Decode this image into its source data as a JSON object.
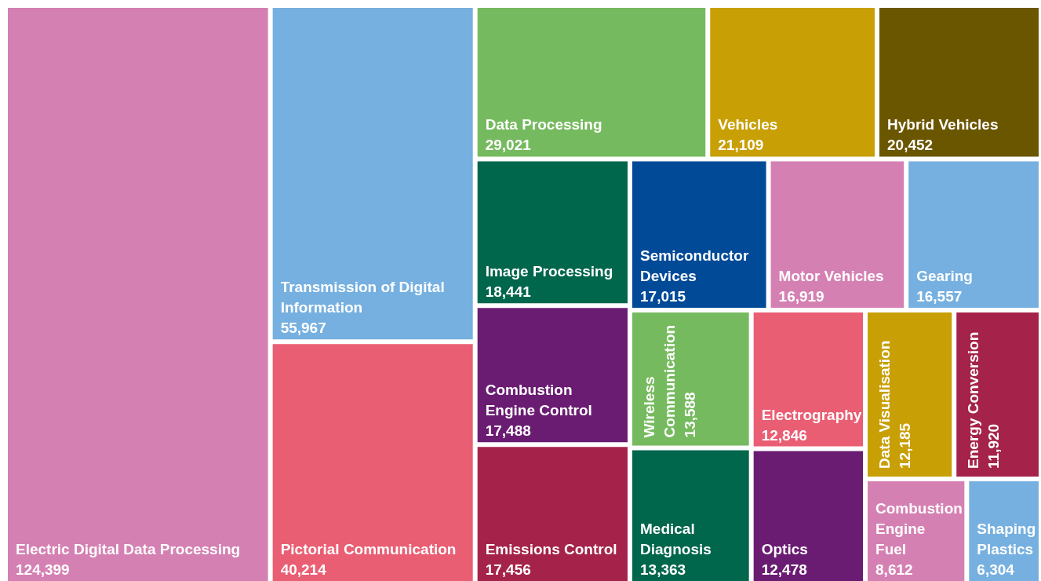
{
  "chart_data": {
    "type": "other",
    "categories": [
      "Electric Digital Data Processing",
      "Transmission of Digital Information",
      "Pictorial Communication",
      "Data Processing",
      "Vehicles",
      "Hybrid Vehicles",
      "Image Processing",
      "Combustion Engine Control",
      "Emissions Control",
      "Semiconductor Devices",
      "Motor Vehicles",
      "Gearing",
      "Wireless Communication",
      "Medical Diagnosis",
      "Electrography",
      "Optics",
      "Data Visualisation",
      "Energy Conversion",
      "Combustion Engine Fuel",
      "Shaping Plastics"
    ],
    "values": [
      124399,
      55967,
      40214,
      29021,
      21109,
      20452,
      18441,
      17488,
      17456,
      17015,
      16919,
      16557,
      13588,
      13363,
      12846,
      12478,
      12185,
      11920,
      8612,
      6304
    ],
    "value_labels": [
      "124,399",
      "55,967",
      "40,214",
      "29,021",
      "21,109",
      "20,452",
      "18,441",
      "17,488",
      "17,456",
      "17,015",
      "16,919",
      "16,557",
      "13,588",
      "13,363",
      "12,846",
      "12,478",
      "12,185",
      "11,920",
      "8,612",
      "6,304"
    ],
    "colors": [
      "#d580b3",
      "#76b0e0",
      "#ea5e73",
      "#76ba5f",
      "#c89f05",
      "#6b5600",
      "#00664c",
      "#6a1c72",
      "#a5234a",
      "#004a98",
      "#d580b3",
      "#76b0e0",
      "#76ba5f",
      "#00664c",
      "#ea5e73",
      "#6a1c72",
      "#c89f05",
      "#a5234a",
      "#d580b3",
      "#76b0e0"
    ]
  }
}
